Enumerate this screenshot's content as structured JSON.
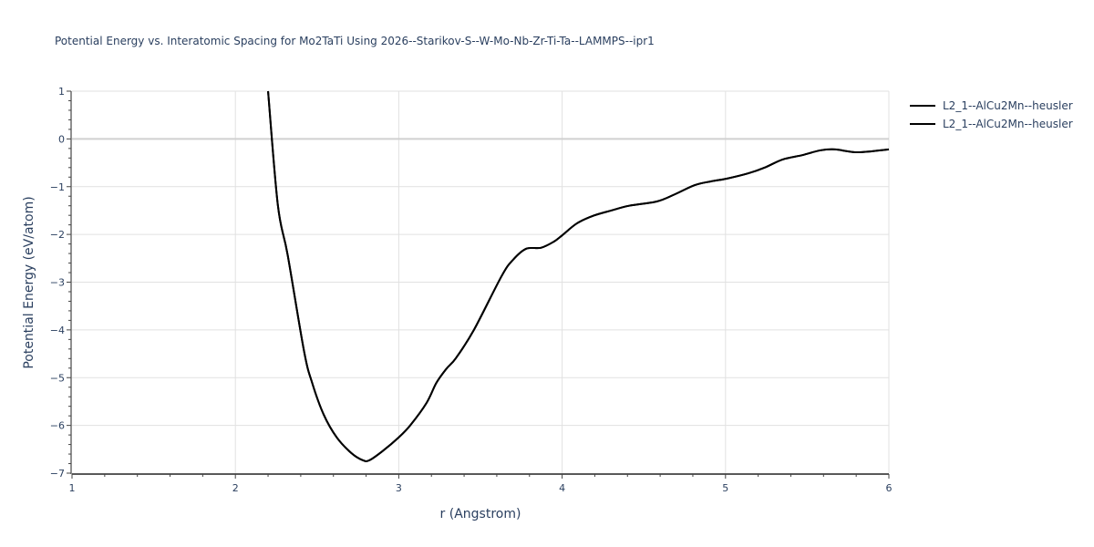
{
  "chart_data": {
    "type": "line",
    "title": "Potential Energy vs. Interatomic Spacing for Mo2TaTi Using 2026--Starikov-S--W-Mo-Nb-Zr-Ti-Ta--LAMMPS--ipr1",
    "xlabel": "r (Angstrom)",
    "ylabel": "Potential Energy (eV/atom)",
    "xlim": [
      1,
      6
    ],
    "ylim": [
      -7,
      1
    ],
    "x_ticks": [
      "1",
      "2",
      "3",
      "4",
      "5",
      "6"
    ],
    "y_ticks": [
      "1",
      "0",
      "−1",
      "−2",
      "−3",
      "−4",
      "−5",
      "−6",
      "−7"
    ],
    "grid": true,
    "legend_position": "top-right-outside",
    "series": [
      {
        "name": "L2_1--AlCu2Mn--heusler",
        "color": "#000000",
        "x": [
          2.2,
          2.26,
          2.32,
          2.42,
          2.47,
          2.54,
          2.62,
          2.71,
          2.78,
          2.82,
          2.9,
          3.0,
          3.07,
          3.17,
          3.23,
          3.29,
          3.35,
          3.46,
          3.63,
          3.7,
          3.78,
          3.87,
          3.95,
          4.0,
          4.09,
          4.19,
          4.3,
          4.41,
          4.58,
          4.69,
          4.81,
          4.91,
          5.01,
          5.14,
          5.24,
          5.35,
          5.47,
          5.58,
          5.67,
          5.81,
          6.0
        ],
        "y": [
          1.0,
          -1.39,
          -2.43,
          -4.44,
          -5.11,
          -5.77,
          -6.25,
          -6.58,
          -6.73,
          -6.73,
          -6.54,
          -6.25,
          -6.0,
          -5.53,
          -5.11,
          -4.82,
          -4.59,
          -4.0,
          -2.87,
          -2.53,
          -2.3,
          -2.28,
          -2.15,
          -2.02,
          -1.77,
          -1.61,
          -1.5,
          -1.4,
          -1.31,
          -1.16,
          -0.97,
          -0.89,
          -0.83,
          -0.72,
          -0.6,
          -0.43,
          -0.34,
          -0.24,
          -0.22,
          -0.28,
          -0.22
        ]
      },
      {
        "name": "L2_1--AlCu2Mn--heusler",
        "color": "#000000",
        "x": [
          2.2,
          2.26,
          2.32,
          2.42,
          2.47,
          2.54,
          2.62,
          2.71,
          2.78,
          2.82,
          2.9,
          3.0,
          3.07,
          3.17,
          3.23,
          3.29,
          3.35,
          3.46,
          3.63,
          3.7,
          3.78,
          3.87,
          3.95,
          4.0,
          4.09,
          4.19,
          4.3,
          4.41,
          4.58,
          4.69,
          4.81,
          4.91,
          5.01,
          5.14,
          5.24,
          5.35,
          5.47,
          5.58,
          5.67,
          5.81,
          6.0
        ],
        "y": [
          1.0,
          -1.39,
          -2.43,
          -4.44,
          -5.11,
          -5.77,
          -6.25,
          -6.58,
          -6.73,
          -6.73,
          -6.54,
          -6.25,
          -6.0,
          -5.53,
          -5.11,
          -4.82,
          -4.59,
          -4.0,
          -2.87,
          -2.53,
          -2.3,
          -2.28,
          -2.15,
          -2.02,
          -1.77,
          -1.61,
          -1.5,
          -1.4,
          -1.31,
          -1.16,
          -0.97,
          -0.89,
          -0.83,
          -0.72,
          -0.6,
          -0.43,
          -0.34,
          -0.24,
          -0.22,
          -0.28,
          -0.22
        ]
      }
    ]
  },
  "legend": {
    "items": [
      {
        "label": "L2_1--AlCu2Mn--heusler"
      },
      {
        "label": "L2_1--AlCu2Mn--heusler"
      }
    ]
  }
}
